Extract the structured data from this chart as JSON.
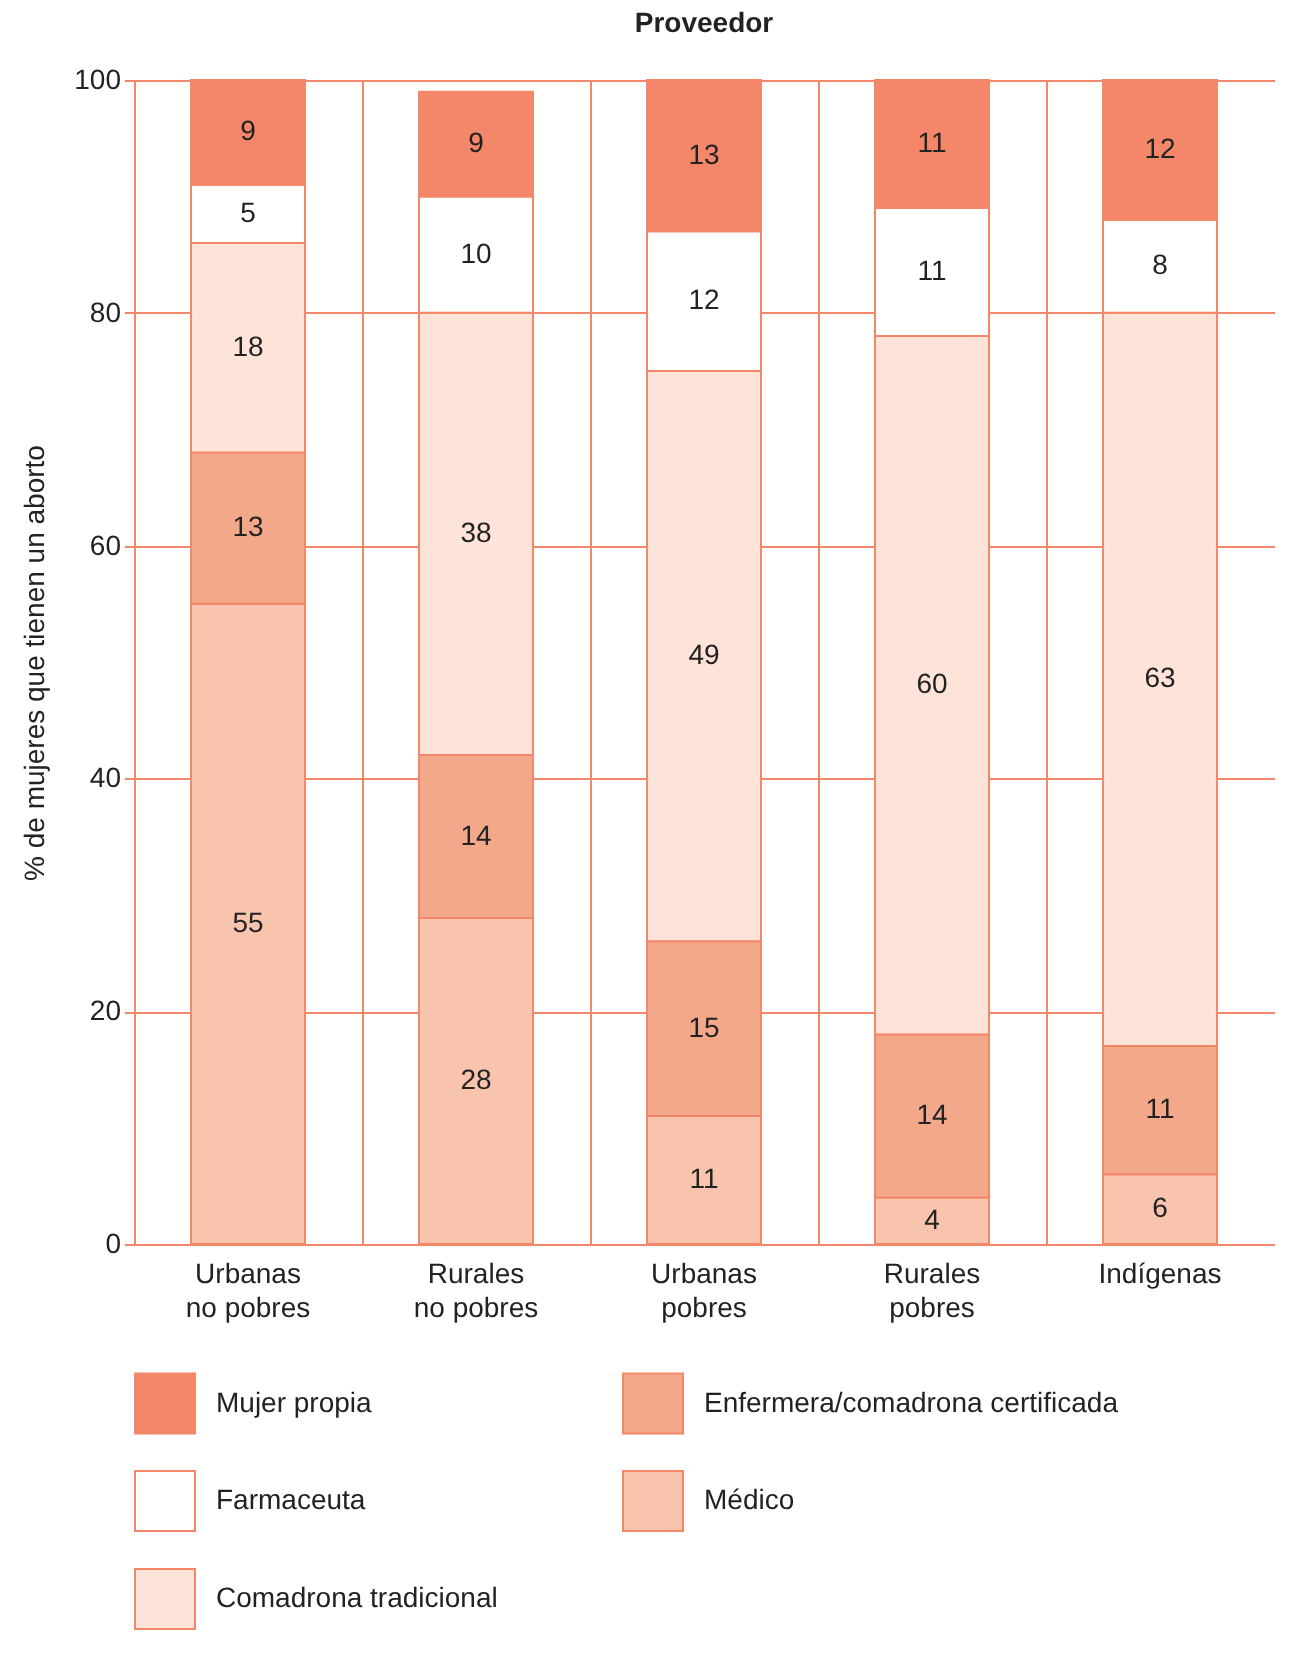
{
  "chart_data": {
    "type": "bar",
    "title": "Proveedor",
    "ylabel": "% de mujeres que tienen un aborto",
    "stacked": true,
    "data_labels": true,
    "grid": true,
    "legend": "bottom",
    "categories": [
      "Urbanas no pobres",
      "Rurales no pobres",
      "Urbanas pobres",
      "Rurales pobres",
      "Indígenas"
    ],
    "series": [
      {
        "name": "Médico",
        "color": "#f9c4ad",
        "values": [
          55,
          28,
          11,
          4,
          6
        ]
      },
      {
        "name": "Enfermera/comadrona certificada",
        "color": "#f4a88a",
        "values": [
          13,
          14,
          15,
          14,
          11
        ]
      },
      {
        "name": "Comadrona tradicional",
        "color": "#fde3d8",
        "values": [
          18,
          38,
          49,
          60,
          63
        ]
      },
      {
        "name": "Farmaceuta",
        "color": "#ffffff",
        "values": [
          5,
          10,
          12,
          11,
          8
        ]
      },
      {
        "name": "Mujer propia",
        "color": "#f4876a",
        "values": [
          9,
          9,
          13,
          11,
          12
        ]
      }
    ],
    "ylim": [
      0,
      100
    ],
    "yticks": [
      0,
      20,
      40,
      60,
      80,
      100
    ]
  }
}
